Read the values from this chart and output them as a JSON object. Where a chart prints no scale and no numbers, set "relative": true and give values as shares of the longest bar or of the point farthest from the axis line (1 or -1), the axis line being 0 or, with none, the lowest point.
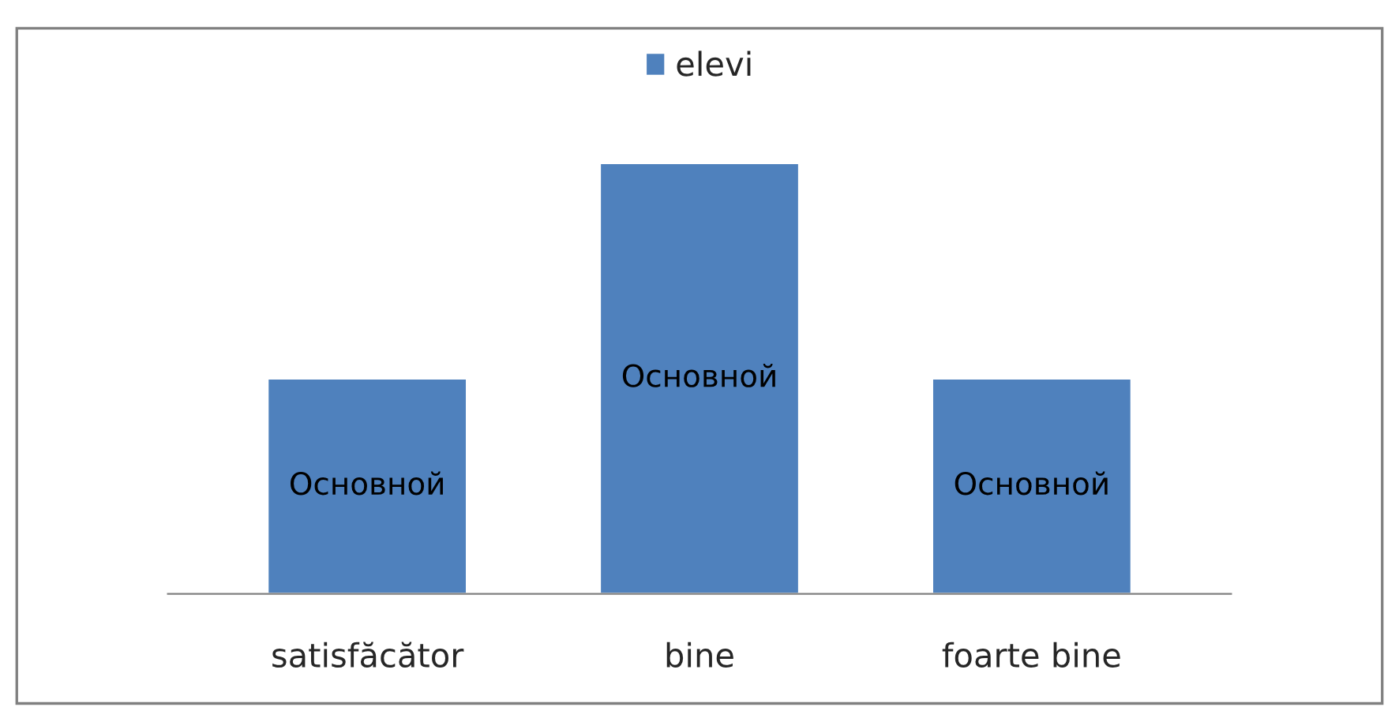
{
  "chart_data": {
    "type": "bar",
    "relative": true,
    "categories": [
      "satisfăcător",
      "bine",
      "foarte bine"
    ],
    "series": [
      {
        "name": "elevi",
        "color": "#4f81bd",
        "values": [
          0.5,
          1,
          0.5
        ]
      }
    ],
    "annotations": [
      "Основной",
      "Основной",
      "Основной"
    ],
    "legend": "top",
    "grid": false
  }
}
